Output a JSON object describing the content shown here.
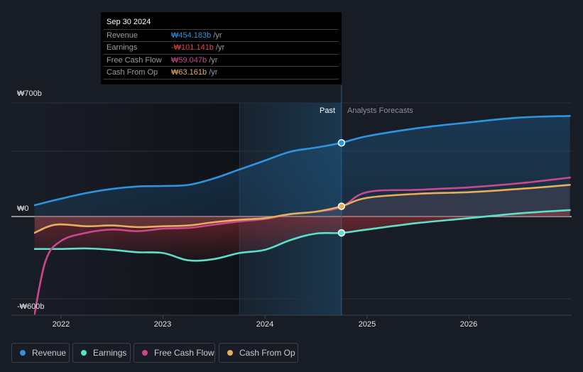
{
  "tooltip": {
    "date": "Sep 30 2024",
    "rows": [
      {
        "label": "Revenue",
        "value": "₩454.183b",
        "unit": " /yr",
        "color": "#2d95e0"
      },
      {
        "label": "Earnings",
        "value": "-₩101.141b",
        "unit": " /yr",
        "color": "#e0474c"
      },
      {
        "label": "Free Cash Flow",
        "value": "₩59.047b",
        "unit": " /yr",
        "color": "#c9488e"
      },
      {
        "label": "Cash From Op",
        "value": "₩63.161b",
        "unit": " /yr",
        "color": "#e9ad5c"
      }
    ]
  },
  "labels": {
    "past": "Past",
    "forecast": "Analysts Forecasts"
  },
  "legend": [
    {
      "label": "Revenue",
      "color": "#2d95e0"
    },
    {
      "label": "Earnings",
      "color": "#5ce0c8"
    },
    {
      "label": "Free Cash Flow",
      "color": "#c9488e"
    },
    {
      "label": "Cash From Op",
      "color": "#e9ad5c"
    }
  ],
  "chart_data": {
    "type": "line",
    "title": "",
    "xlabel": "",
    "ylabel": "",
    "ylim": [
      -600,
      700
    ],
    "xlim": [
      2021.74,
      2026.99
    ],
    "y_ticks": [
      {
        "value": 700,
        "label": "₩700b"
      },
      {
        "value": 0,
        "label": "₩0"
      },
      {
        "value": -600,
        "label": "-₩600b"
      }
    ],
    "x_ticks": [
      {
        "value": 2022,
        "label": "2022"
      },
      {
        "value": 2023,
        "label": "2023"
      },
      {
        "value": 2024,
        "label": "2024"
      },
      {
        "value": 2025,
        "label": "2025"
      },
      {
        "value": 2026,
        "label": "2026"
      }
    ],
    "past_end": 2024.75,
    "highlight_start": 2023.75,
    "grid": true,
    "series": [
      {
        "name": "Revenue",
        "color": "#2d95e0",
        "x": [
          2021.74,
          2022.0,
          2022.25,
          2022.5,
          2022.75,
          2023.0,
          2023.25,
          2023.5,
          2023.75,
          2024.0,
          2024.25,
          2024.5,
          2024.75,
          2025.0,
          2025.5,
          2026.0,
          2026.5,
          2026.99
        ],
        "values": [
          70,
          110,
          145,
          170,
          185,
          188,
          195,
          235,
          290,
          345,
          400,
          425,
          454,
          495,
          545,
          580,
          610,
          620
        ]
      },
      {
        "name": "Earnings",
        "color": "#5ce0c8",
        "x": [
          2021.74,
          2022.0,
          2022.25,
          2022.5,
          2022.75,
          2023.0,
          2023.25,
          2023.5,
          2023.75,
          2024.0,
          2024.25,
          2024.5,
          2024.75,
          2025.0,
          2025.5,
          2026.0,
          2026.5,
          2026.99
        ],
        "values": [
          -200,
          -200,
          -197,
          -205,
          -220,
          -225,
          -270,
          -262,
          -225,
          -205,
          -145,
          -105,
          -101,
          -80,
          -40,
          -10,
          20,
          40
        ]
      },
      {
        "name": "Free Cash Flow",
        "color": "#c9488e",
        "x": [
          2021.74,
          2021.85,
          2022.0,
          2022.25,
          2022.5,
          2022.75,
          2023.0,
          2023.25,
          2023.5,
          2023.75,
          2024.0,
          2024.25,
          2024.5,
          2024.75,
          2025.0,
          2025.5,
          2026.0,
          2026.5,
          2026.99
        ],
        "values": [
          -600,
          -270,
          -150,
          -100,
          -80,
          -90,
          -75,
          -70,
          -50,
          -30,
          -15,
          15,
          30,
          59,
          150,
          165,
          180,
          205,
          240
        ]
      },
      {
        "name": "Cash From Op",
        "color": "#e9ad5c",
        "x": [
          2021.74,
          2021.95,
          2022.25,
          2022.5,
          2022.75,
          2023.0,
          2023.25,
          2023.5,
          2023.75,
          2024.0,
          2024.25,
          2024.5,
          2024.75,
          2025.0,
          2025.5,
          2026.0,
          2026.5,
          2026.99
        ],
        "values": [
          -100,
          -50,
          -60,
          -55,
          -65,
          -60,
          -55,
          -35,
          -20,
          -10,
          15,
          30,
          63,
          115,
          140,
          150,
          170,
          195
        ]
      }
    ]
  }
}
